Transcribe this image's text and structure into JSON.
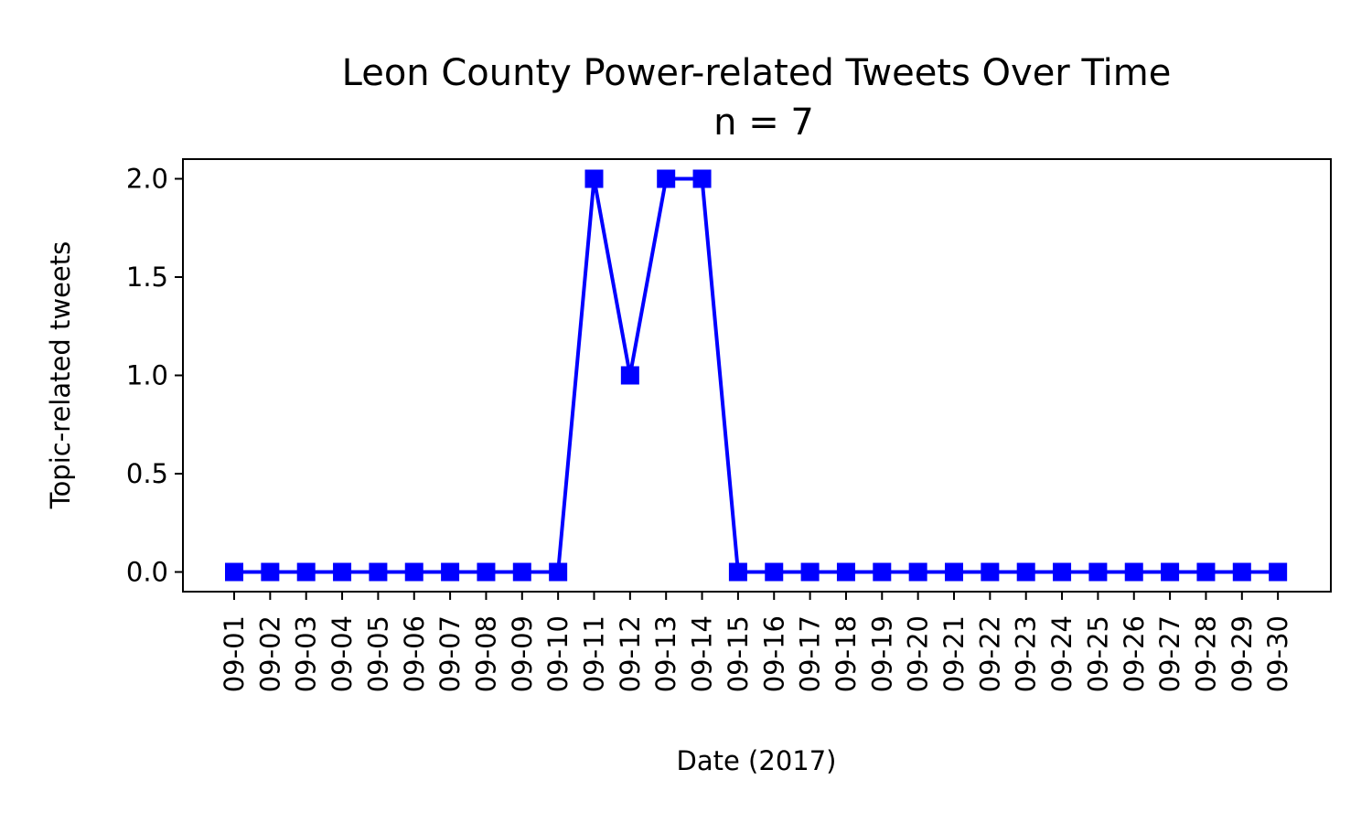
{
  "chart_data": {
    "type": "line",
    "title": "Leon County Power-related Tweets Over Time",
    "subtitle": "n = 7",
    "xlabel": "Date (2017)",
    "ylabel": "Topic-related tweets",
    "x": [
      "09-01",
      "09-02",
      "09-03",
      "09-04",
      "09-05",
      "09-06",
      "09-07",
      "09-08",
      "09-09",
      "09-10",
      "09-11",
      "09-12",
      "09-13",
      "09-14",
      "09-15",
      "09-16",
      "09-17",
      "09-18",
      "09-19",
      "09-20",
      "09-21",
      "09-22",
      "09-23",
      "09-24",
      "09-25",
      "09-26",
      "09-27",
      "09-28",
      "09-29",
      "09-30"
    ],
    "series": [
      {
        "values": [
          0,
          0,
          0,
          0,
          0,
          0,
          0,
          0,
          0,
          0,
          2,
          1,
          2,
          2,
          0,
          0,
          0,
          0,
          0,
          0,
          0,
          0,
          0,
          0,
          0,
          0,
          0,
          0,
          0,
          0
        ],
        "color": "#0000ff",
        "marker": "square"
      }
    ],
    "ylim": [
      -0.1,
      2.1
    ],
    "yticks": [
      "0.0",
      "0.5",
      "1.0",
      "1.5",
      "2.0"
    ],
    "grid": false
  }
}
